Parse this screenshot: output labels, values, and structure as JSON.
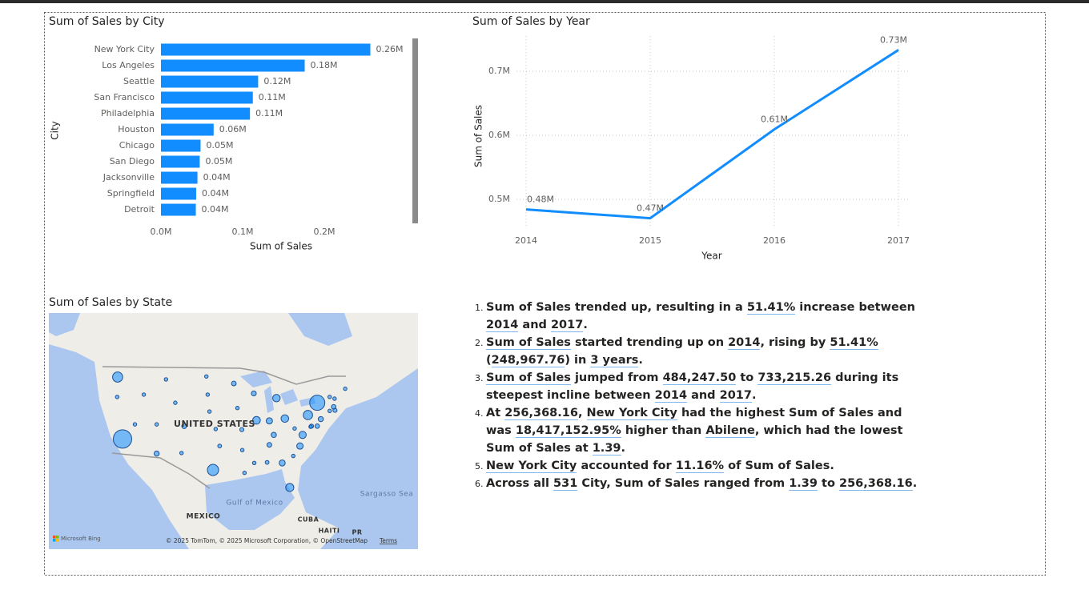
{
  "chart_data": [
    {
      "type": "hbar",
      "title": "Sum of Sales by City",
      "x_label": "Sum of Sales",
      "y_label": "City",
      "color": "#118dff",
      "categories": [
        "New York City",
        "Los Angeles",
        "Seattle",
        "San Francisco",
        "Philadelphia",
        "Houston",
        "Chicago",
        "San Diego",
        "Jacksonville",
        "Springfield",
        "Detroit"
      ],
      "values": [
        256368.16,
        176000,
        119000,
        112500,
        109000,
        64500,
        48500,
        47500,
        44700,
        43100,
        42700
      ],
      "value_labels": [
        "0.26M",
        "0.18M",
        "0.12M",
        "0.11M",
        "0.11M",
        "0.06M",
        "0.05M",
        "0.05M",
        "0.04M",
        "0.04M",
        "0.04M"
      ],
      "xlim": [
        0,
        300000
      ],
      "xticks": [
        {
          "value": 0,
          "label": "0.0M"
        },
        {
          "value": 100000,
          "label": "0.1M"
        },
        {
          "value": 200000,
          "label": "0.2M"
        }
      ]
    },
    {
      "type": "line",
      "title": "Sum of Sales by Year",
      "x_label": "Year",
      "y_label": "Sum of Sales",
      "color": "#118dff",
      "grid": true,
      "x": [
        2014,
        2015,
        2016,
        2017
      ],
      "values": [
        484247.5,
        470500,
        609200,
        733215.26
      ],
      "value_labels": [
        "0.48M",
        "0.47M",
        "0.61M",
        "0.73M"
      ],
      "xlim": [
        2014,
        2017
      ],
      "xticks": [
        2014,
        2015,
        2016,
        2017
      ],
      "ylim": [
        457500,
        755000
      ],
      "yticks": [
        {
          "value": 500000,
          "label": "0.5M"
        },
        {
          "value": 600000,
          "label": "0.6M"
        },
        {
          "value": 700000,
          "label": "0.7M"
        }
      ]
    },
    {
      "type": "map",
      "title": "Sum of Sales by State",
      "color": "#118dff",
      "labels": [
        "UNITED STATES",
        "MEXICO",
        "Gulf of Mexico",
        "Sargasso Sea",
        "CUBA",
        "HAITI",
        "PR"
      ],
      "logo": "Microsoft Bing",
      "attribution": "© 2025 TomTom, © 2025 Microsoft Corporation, © OpenStreetMap",
      "terms": "Terms",
      "points": [
        {
          "lon": -120.5,
          "lat": 47.4,
          "value": 138641
        },
        {
          "lon": -120.6,
          "lat": 44.0,
          "value": 17431
        },
        {
          "lon": -119.4,
          "lat": 36.8,
          "value": 457688
        },
        {
          "lon": -116.6,
          "lat": 39.3,
          "value": 16729
        },
        {
          "lon": -111.7,
          "lat": 34.3,
          "value": 35282
        },
        {
          "lon": -111.7,
          "lat": 39.3,
          "value": 11220
        },
        {
          "lon": -114.6,
          "lat": 44.4,
          "value": 4382
        },
        {
          "lon": -109.6,
          "lat": 47.0,
          "value": 5589
        },
        {
          "lon": -107.5,
          "lat": 43.0,
          "value": 1603
        },
        {
          "lon": -105.5,
          "lat": 39.0,
          "value": 32108
        },
        {
          "lon": -106.1,
          "lat": 34.4,
          "value": 4784
        },
        {
          "lon": -100.5,
          "lat": 47.5,
          "value": 920
        },
        {
          "lon": -100.2,
          "lat": 44.4,
          "value": 1316
        },
        {
          "lon": -99.8,
          "lat": 41.5,
          "value": 7465
        },
        {
          "lon": -98.4,
          "lat": 38.5,
          "value": 2914
        },
        {
          "lon": -97.5,
          "lat": 35.6,
          "value": 19683
        },
        {
          "lon": -99.0,
          "lat": 31.5,
          "value": 170188
        },
        {
          "lon": -94.3,
          "lat": 46.3,
          "value": 29863
        },
        {
          "lon": -93.5,
          "lat": 42.1,
          "value": 4580
        },
        {
          "lon": -92.5,
          "lat": 38.4,
          "value": 22205
        },
        {
          "lon": -92.4,
          "lat": 34.9,
          "value": 11678
        },
        {
          "lon": -91.9,
          "lat": 31.0,
          "value": 9217
        },
        {
          "lon": -89.8,
          "lat": 44.6,
          "value": 32115
        },
        {
          "lon": -89.2,
          "lat": 40.0,
          "value": 80166
        },
        {
          "lon": -84.7,
          "lat": 43.8,
          "value": 76270
        },
        {
          "lon": -86.3,
          "lat": 39.9,
          "value": 53555
        },
        {
          "lon": -82.8,
          "lat": 40.3,
          "value": 78258
        },
        {
          "lon": -85.3,
          "lat": 37.5,
          "value": 36592
        },
        {
          "lon": -86.3,
          "lat": 35.8,
          "value": 30662
        },
        {
          "lon": -89.7,
          "lat": 32.7,
          "value": 10771
        },
        {
          "lon": -86.8,
          "lat": 32.8,
          "value": 19511
        },
        {
          "lon": -83.4,
          "lat": 32.7,
          "value": 49096
        },
        {
          "lon": -81.7,
          "lat": 28.5,
          "value": 89474
        },
        {
          "lon": -80.9,
          "lat": 33.9,
          "value": 8482
        },
        {
          "lon": -79.4,
          "lat": 35.6,
          "value": 55603
        },
        {
          "lon": -78.8,
          "lat": 37.5,
          "value": 70637
        },
        {
          "lon": -80.6,
          "lat": 38.6,
          "value": 1210
        },
        {
          "lon": -77.6,
          "lat": 40.9,
          "value": 116512
        },
        {
          "lon": -75.5,
          "lat": 43.0,
          "value": 310876
        },
        {
          "lon": -72.7,
          "lat": 44.0,
          "value": 8930
        },
        {
          "lon": -71.6,
          "lat": 43.7,
          "value": 7293
        },
        {
          "lon": -69.2,
          "lat": 45.4,
          "value": 1271
        },
        {
          "lon": -71.8,
          "lat": 42.3,
          "value": 28634
        },
        {
          "lon": -72.7,
          "lat": 41.6,
          "value": 13384
        },
        {
          "lon": -71.5,
          "lat": 41.7,
          "value": 22628
        },
        {
          "lon": -74.7,
          "lat": 40.2,
          "value": 35764
        },
        {
          "lon": -75.5,
          "lat": 39.0,
          "value": 27451
        },
        {
          "lon": -76.8,
          "lat": 39.0,
          "value": 23706
        },
        {
          "lon": -77.0,
          "lat": 38.9,
          "value": 2865
        }
      ]
    }
  ],
  "narrative": {
    "items": [
      [
        {
          "text": "Sum of Sales trended up, resulting in a "
        },
        {
          "text": "51.41%",
          "underline": true
        },
        {
          "text": " increase between "
        },
        {
          "text": "2014",
          "underline": true
        },
        {
          "text": " and "
        },
        {
          "text": "2017",
          "underline": true
        },
        {
          "text": "."
        }
      ],
      [
        {
          "text": "Sum of Sales",
          "underline": true
        },
        {
          "text": " started trending up on "
        },
        {
          "text": "2014",
          "underline": true
        },
        {
          "text": ", rising by "
        },
        {
          "text": "51.41%",
          "underline": true
        },
        {
          "text": " ("
        },
        {
          "text": "248,967.76",
          "underline": true
        },
        {
          "text": ") in "
        },
        {
          "text": "3 years",
          "underline": true
        },
        {
          "text": "."
        }
      ],
      [
        {
          "text": "Sum of Sales",
          "underline": true
        },
        {
          "text": " jumped from "
        },
        {
          "text": "484,247.50",
          "underline": true
        },
        {
          "text": " to "
        },
        {
          "text": "733,215.26",
          "underline": true
        },
        {
          "text": " during its steepest incline between "
        },
        {
          "text": "2014",
          "underline": true
        },
        {
          "text": " and "
        },
        {
          "text": "2017",
          "underline": true
        },
        {
          "text": "."
        }
      ],
      [
        {
          "text": "At "
        },
        {
          "text": "256,368.16",
          "underline": true
        },
        {
          "text": ", "
        },
        {
          "text": "New York City",
          "underline": true
        },
        {
          "text": " had the highest Sum of Sales and was "
        },
        {
          "text": "18,417,152.95%",
          "underline": true
        },
        {
          "text": " higher than "
        },
        {
          "text": "Abilene",
          "underline": true
        },
        {
          "text": ", which had the lowest Sum of Sales at "
        },
        {
          "text": "1.39",
          "underline": true
        },
        {
          "text": "."
        }
      ],
      [
        {
          "text": "New York City",
          "underline": true
        },
        {
          "text": " accounted for "
        },
        {
          "text": "11.16%",
          "underline": true
        },
        {
          "text": " of Sum of Sales."
        }
      ],
      [
        {
          "text": "Across all "
        },
        {
          "text": "531",
          "underline": true
        },
        {
          "text": " City, Sum of Sales ranged from "
        },
        {
          "text": "1.39",
          "underline": true
        },
        {
          "text": " to "
        },
        {
          "text": "256,368.16",
          "underline": true
        },
        {
          "text": "."
        }
      ]
    ]
  }
}
